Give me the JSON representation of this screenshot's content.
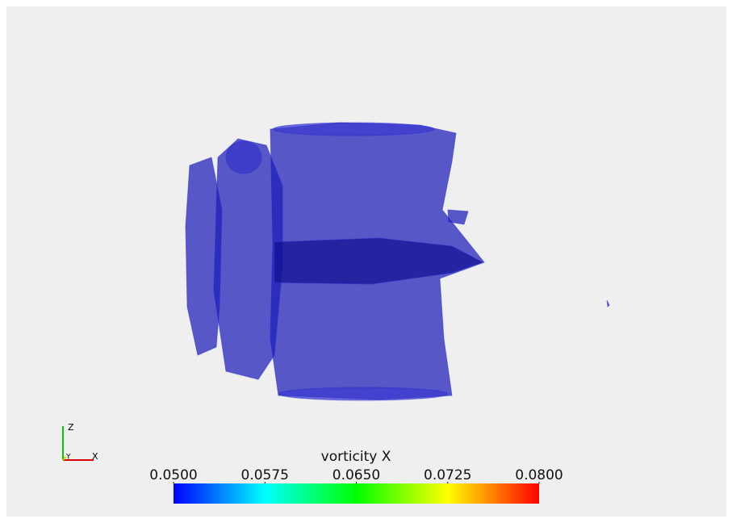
{
  "colorbar": {
    "title": "vorticity X",
    "range": [
      0.05,
      0.08
    ],
    "ticks": [
      {
        "value": 0.05,
        "label": "0.0500"
      },
      {
        "value": 0.0575,
        "label": "0.0575"
      },
      {
        "value": 0.065,
        "label": "0.0650"
      },
      {
        "value": 0.0725,
        "label": "0.0725"
      },
      {
        "value": 0.08,
        "label": "0.0800"
      }
    ]
  },
  "axes_triad": {
    "x": "X",
    "y": "Y",
    "z": "Z"
  }
}
